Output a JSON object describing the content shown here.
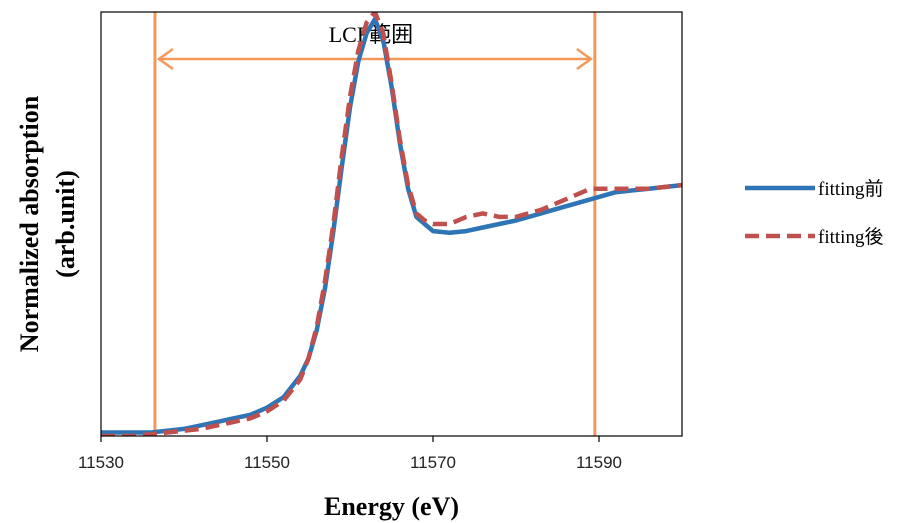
{
  "chart_data": {
    "type": "line",
    "title": "",
    "xlabel": "Energy (eV)",
    "ylabel_line1": "Normalized absorption",
    "ylabel_line2": "(arb.unit)",
    "xlim": [
      11530,
      11600
    ],
    "ylim": [
      0,
      1.2
    ],
    "xticks": [
      11530,
      11550,
      11570,
      11590
    ],
    "grid": false,
    "legend_position": "right",
    "annotation": {
      "label": "LCF範囲",
      "x_start": 11536.5,
      "x_end": 11589.5,
      "color": "#f4985a"
    },
    "series": [
      {
        "name": "fitting前",
        "color": "#2e75b6",
        "dashed": false,
        "x": [
          11530,
          11532,
          11534,
          11536,
          11538,
          11540,
          11542,
          11544,
          11546,
          11548,
          11550,
          11552,
          11554,
          11555,
          11556,
          11557,
          11558,
          11559,
          11560,
          11561,
          11562,
          11563,
          11564,
          11565,
          11566,
          11567,
          11568,
          11569,
          11570,
          11572,
          11574,
          11576,
          11578,
          11580,
          11583,
          11586,
          11589,
          11592,
          11596,
          11600
        ],
        "y": [
          0.01,
          0.01,
          0.01,
          0.01,
          0.015,
          0.02,
          0.03,
          0.04,
          0.05,
          0.06,
          0.08,
          0.11,
          0.17,
          0.22,
          0.3,
          0.42,
          0.58,
          0.76,
          0.93,
          1.06,
          1.14,
          1.18,
          1.12,
          0.99,
          0.83,
          0.7,
          0.62,
          0.6,
          0.58,
          0.575,
          0.58,
          0.59,
          0.6,
          0.61,
          0.63,
          0.65,
          0.67,
          0.69,
          0.7,
          0.71
        ]
      },
      {
        "name": "fitting後",
        "color": "#c0504d",
        "dashed": true,
        "x": [
          11530,
          11532,
          11534,
          11536,
          11538,
          11540,
          11542,
          11544,
          11546,
          11548,
          11550,
          11552,
          11554,
          11555,
          11556,
          11557,
          11558,
          11559,
          11560,
          11561,
          11562,
          11563,
          11564,
          11565,
          11566,
          11567,
          11568,
          11569,
          11570,
          11572,
          11574,
          11576,
          11578,
          11580,
          11583,
          11586,
          11589,
          11592,
          11596,
          11600
        ],
        "y": [
          0.0,
          0.0,
          0.0,
          0.005,
          0.01,
          0.015,
          0.02,
          0.03,
          0.04,
          0.05,
          0.07,
          0.1,
          0.16,
          0.22,
          0.31,
          0.44,
          0.6,
          0.79,
          0.96,
          1.09,
          1.17,
          1.2,
          1.14,
          1.0,
          0.84,
          0.71,
          0.63,
          0.61,
          0.6,
          0.6,
          0.62,
          0.63,
          0.62,
          0.62,
          0.64,
          0.67,
          0.7,
          0.7,
          0.7,
          0.71
        ]
      }
    ]
  }
}
